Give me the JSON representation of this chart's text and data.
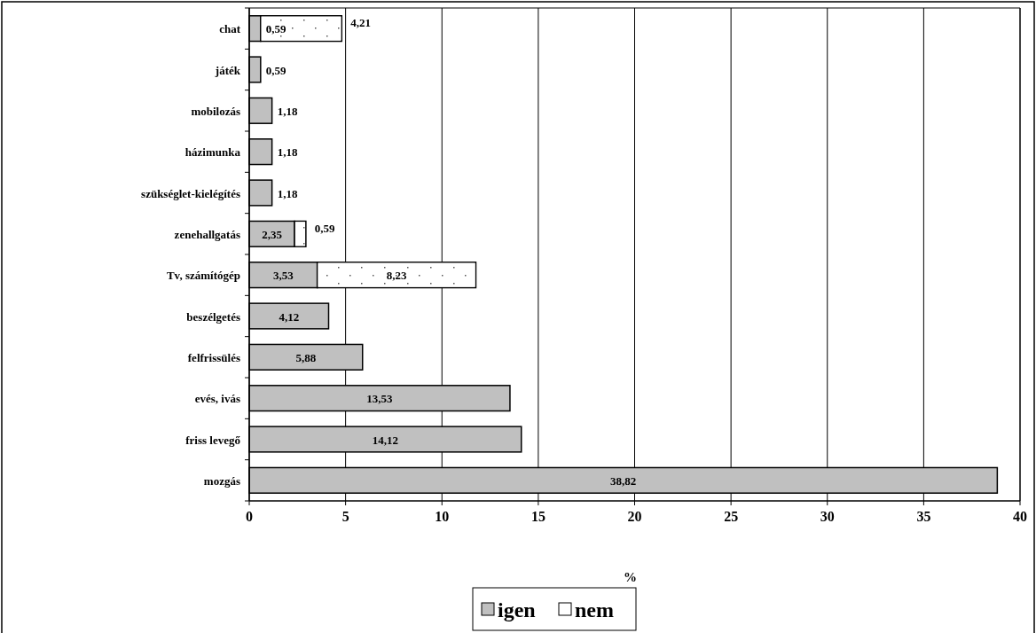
{
  "chart_data": {
    "type": "bar",
    "orientation": "horizontal",
    "stacked": true,
    "categories": [
      "chat",
      "játék",
      "mobilozás",
      "házimunka",
      "szükséglet-kielégítés",
      "zenehallgatás",
      "Tv, számítógép",
      "beszélgetés",
      "felfrissülés",
      "evés, ivás",
      "friss levegő",
      "mozgás"
    ],
    "series": [
      {
        "name": "igen",
        "color": "#c0c0c0",
        "values": [
          0.59,
          0.59,
          1.18,
          1.18,
          1.18,
          2.35,
          3.53,
          4.12,
          5.88,
          13.53,
          14.12,
          38.82
        ],
        "value_labels": [
          "0,59",
          "0,59",
          "1,18",
          "1,18",
          "1,18",
          "2,35",
          "3,53",
          "4,12",
          "5,88",
          "13,53",
          "14,12",
          "38,82"
        ]
      },
      {
        "name": "nem",
        "color": "#ffffff",
        "values": [
          4.21,
          null,
          null,
          null,
          null,
          0.59,
          8.23,
          null,
          null,
          null,
          null,
          null
        ],
        "value_labels": [
          "4,21",
          null,
          null,
          null,
          null,
          "0,59",
          "8,23",
          null,
          null,
          null,
          null,
          null
        ]
      }
    ],
    "xlabel": "%",
    "xlim": [
      0,
      40
    ],
    "xticks": [
      0,
      5,
      10,
      15,
      20,
      25,
      30,
      35,
      40
    ],
    "grid": "x",
    "legend": "bottom"
  }
}
